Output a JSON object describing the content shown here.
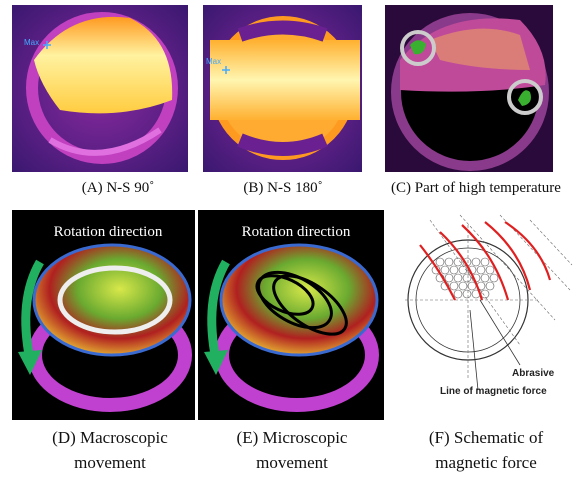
{
  "panels": [
    {
      "caption": "(A) N-S 90˚",
      "marker": "Max"
    },
    {
      "caption": "(B) N-S 180˚",
      "marker": "Max"
    },
    {
      "caption": "(C) Part of high temperature"
    },
    {
      "caption": [
        "(D) Macroscopic",
        "movement"
      ],
      "label": "Rotation direction"
    },
    {
      "caption": [
        "(E) Microscopic",
        "movement"
      ],
      "label": "Rotation direction"
    },
    {
      "caption": [
        "(F) Schematic of",
        "magnetic force"
      ],
      "labels": [
        "Abrasive",
        "Line of magnetic force"
      ]
    }
  ]
}
